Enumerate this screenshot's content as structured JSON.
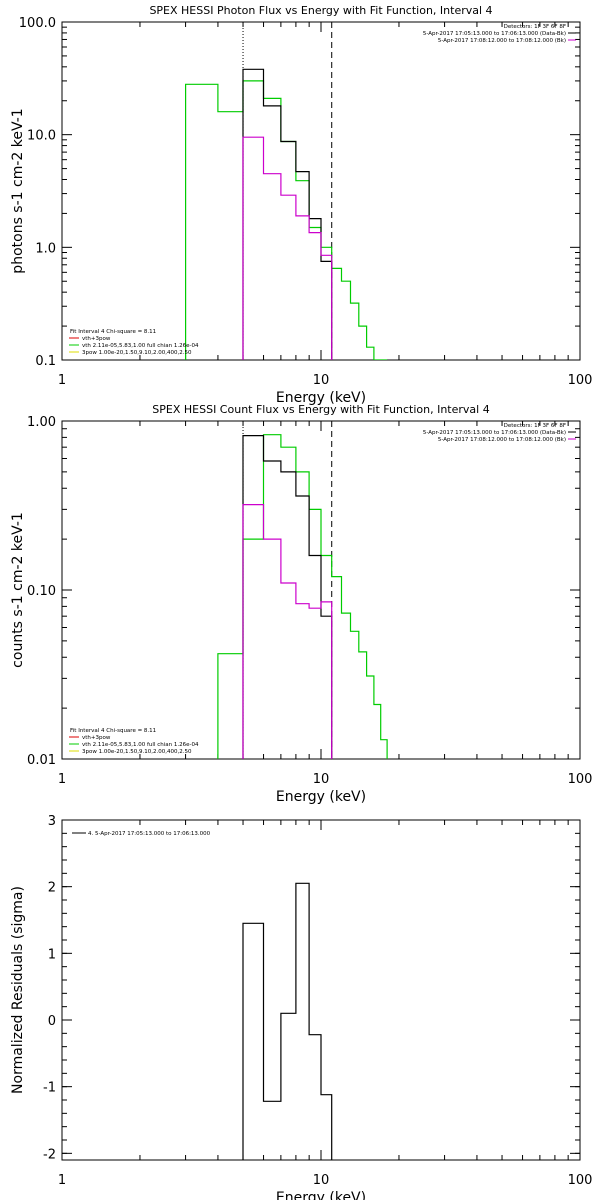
{
  "chart_data": [
    {
      "type": "line",
      "title": "SPEX HESSI Photon Flux vs Energy with Fit Function, Interval 4",
      "xlabel": "Energy (keV)",
      "ylabel": "photons s-1 cm-2 keV-1",
      "x_scale": "log",
      "y_scale": "log",
      "xlim": [
        1,
        100
      ],
      "ylim": [
        0.1,
        100
      ],
      "x_ticks": [
        {
          "v": 1,
          "label": "1"
        },
        {
          "v": 10,
          "label": "10"
        },
        {
          "v": 100,
          "label": "100"
        }
      ],
      "y_ticks": [
        {
          "v": 0.1,
          "label": "0.1"
        },
        {
          "v": 1,
          "label": "1.0"
        },
        {
          "v": 10,
          "label": "10.0"
        },
        {
          "v": 100,
          "label": "100.0"
        }
      ],
      "vlines": [
        {
          "x": 5.0,
          "style": "dotted"
        },
        {
          "x": 11.0,
          "style": "dashed"
        }
      ],
      "legend_tr": [
        "Detectors: 1F 3F 6F 8F",
        "5-Apr-2017 17:05:13.000 to 17:06:13.000 (Data-Bk)",
        "5-Apr-2017 17:08:12.000 to 17:08:12.000 (Bk)"
      ],
      "legend_bl": [
        {
          "text": "Fit Interval 4   Chi-square = 8.11",
          "color": ""
        },
        {
          "text": "vth+3pow",
          "color": "#dd0000"
        },
        {
          "text": "vth 2.11e-05,5.83,1.00  full chian 1.26e-04",
          "color": "#00cc00"
        },
        {
          "text": "3pow 1.00e-20,1.50,9.10,2.00,400,2.50",
          "color": "#dddd00"
        }
      ],
      "series": [
        {
          "color": "#00cc00",
          "edges": [
            3,
            4,
            5,
            6,
            7,
            8,
            9,
            10,
            11,
            12,
            13,
            14,
            15,
            16,
            17,
            18
          ],
          "values": [
            28,
            16,
            30,
            21,
            8.7,
            3.9,
            1.5,
            1.0,
            0.65,
            0.5,
            0.32,
            0.2,
            0.13,
            0.1,
            0.1
          ]
        },
        {
          "color": "#000000",
          "edges": [
            5,
            6,
            7,
            8,
            9,
            10,
            11
          ],
          "values": [
            38,
            18,
            8.7,
            4.7,
            1.8,
            0.75
          ]
        },
        {
          "color": "#cc00cc",
          "edges": [
            5,
            6,
            7,
            8,
            9,
            10,
            11
          ],
          "values": [
            9.5,
            4.5,
            2.9,
            1.9,
            1.35,
            0.85
          ]
        }
      ]
    },
    {
      "type": "line",
      "title": "SPEX HESSI Count Flux vs Energy with Fit Function, Interval 4",
      "xlabel": "Energy (keV)",
      "ylabel": "counts s-1 cm-2 keV-1",
      "x_scale": "log",
      "y_scale": "log",
      "xlim": [
        1,
        100
      ],
      "ylim": [
        0.01,
        1.0
      ],
      "x_ticks": [
        {
          "v": 1,
          "label": "1"
        },
        {
          "v": 10,
          "label": "10"
        },
        {
          "v": 100,
          "label": "100"
        }
      ],
      "y_ticks": [
        {
          "v": 0.01,
          "label": "0.01"
        },
        {
          "v": 0.1,
          "label": "0.10"
        },
        {
          "v": 1.0,
          "label": "1.00"
        }
      ],
      "vlines": [
        {
          "x": 5.0,
          "style": "dotted"
        },
        {
          "x": 11.0,
          "style": "dashed"
        }
      ],
      "legend_tr": [
        "Detectors: 1F 3F 6F 8F",
        "5-Apr-2017 17:05:13.000 to 17:06:13.000 (Data-Bk)",
        "5-Apr-2017 17:08:12.000 to 17:08:12.000 (Bk)"
      ],
      "legend_bl": [
        {
          "text": "Fit Interval 4   Chi-square = 8.11",
          "color": ""
        },
        {
          "text": "vth+3pow",
          "color": "#dd0000"
        },
        {
          "text": "vth 2.11e-05,5.83,1.00  full chian 1.26e-04",
          "color": "#00cc00"
        },
        {
          "text": "3pow 1.00e-20,1.50,9.10,2.00,400,2.50",
          "color": "#dddd00"
        }
      ],
      "series": [
        {
          "color": "#00cc00",
          "edges": [
            4,
            5,
            6,
            7,
            8,
            9,
            10,
            11,
            12,
            13,
            14,
            15,
            16,
            17,
            18
          ],
          "values": [
            0.042,
            0.2,
            0.83,
            0.7,
            0.5,
            0.3,
            0.16,
            0.12,
            0.073,
            0.057,
            0.043,
            0.031,
            0.021,
            0.013
          ]
        },
        {
          "color": "#000000",
          "edges": [
            5,
            6,
            7,
            8,
            9,
            10,
            11
          ],
          "values": [
            0.82,
            0.58,
            0.5,
            0.36,
            0.16,
            0.07
          ]
        },
        {
          "color": "#cc00cc",
          "edges": [
            5,
            6,
            7,
            8,
            9,
            10,
            11
          ],
          "values": [
            0.32,
            0.2,
            0.11,
            0.083,
            0.078,
            0.085
          ]
        }
      ]
    },
    {
      "type": "line",
      "title": "",
      "xlabel": "Energy (keV)",
      "ylabel": "Normalized Residuals (sigma)",
      "x_scale": "log",
      "y_scale": "linear",
      "xlim": [
        1,
        100
      ],
      "ylim": [
        -2.1,
        3.0
      ],
      "x_ticks": [
        {
          "v": 1,
          "label": "1"
        },
        {
          "v": 10,
          "label": "10"
        },
        {
          "v": 100,
          "label": "100"
        }
      ],
      "y_ticks": [
        {
          "v": -2,
          "label": "-2"
        },
        {
          "v": -1,
          "label": "-1"
        },
        {
          "v": 0,
          "label": "0"
        },
        {
          "v": 1,
          "label": "1"
        },
        {
          "v": 2,
          "label": "2"
        },
        {
          "v": 3,
          "label": "3"
        }
      ],
      "vlines": [],
      "legend_tr": [],
      "legend_tl": "4.  5-Apr-2017 17:05:13.000 to 17:06:13.000",
      "legend_bl": [],
      "series": [
        {
          "color": "#000000",
          "edges": [
            5,
            6,
            7,
            8,
            9,
            10,
            11
          ],
          "values": [
            1.45,
            -1.22,
            0.1,
            2.05,
            -0.22,
            -1.12
          ]
        }
      ]
    }
  ]
}
